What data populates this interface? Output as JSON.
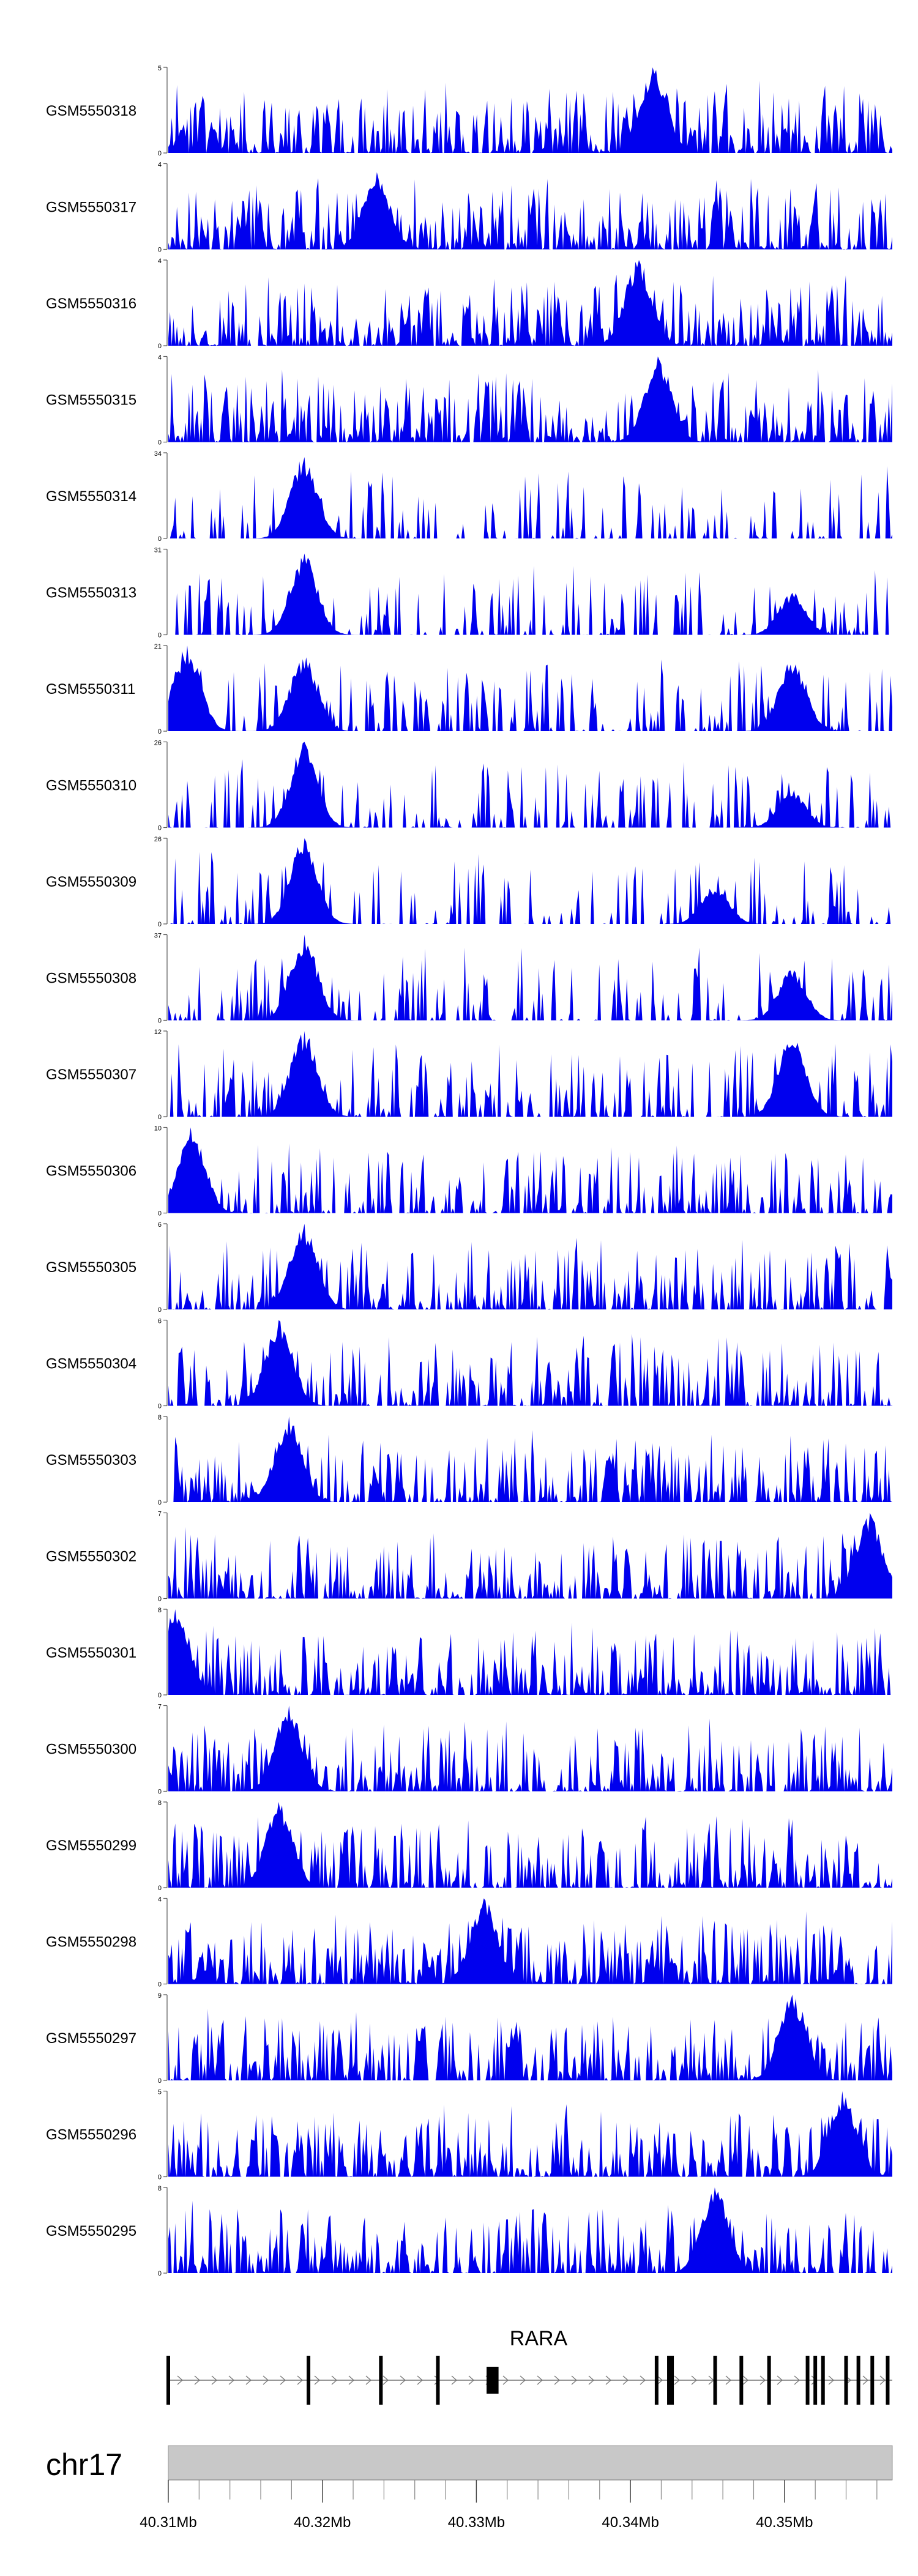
{
  "chart_data": {
    "type": "area",
    "title": "",
    "xlabel": "",
    "ylabel": "",
    "x_range_mb": [
      40.31,
      40.357
    ],
    "fill_color": "#0000ee",
    "tracks": [
      {
        "name": "GSM5550318",
        "ymax": 5,
        "ymin": 0,
        "seed": 318,
        "peaks": [
          [
            40.3415,
            1.0
          ]
        ],
        "dense": 0.85
      },
      {
        "name": "GSM5550317",
        "ymax": 4,
        "ymin": 0,
        "seed": 317,
        "peaks": [
          [
            40.3235,
            0.9
          ]
        ],
        "dense": 0.85
      },
      {
        "name": "GSM5550316",
        "ymax": 4,
        "ymin": 0,
        "seed": 316,
        "peaks": [
          [
            40.3405,
            1.0
          ]
        ],
        "dense": 0.85
      },
      {
        "name": "GSM5550315",
        "ymax": 4,
        "ymin": 0,
        "seed": 315,
        "peaks": [
          [
            40.3418,
            1.0
          ]
        ],
        "dense": 0.85
      },
      {
        "name": "GSM5550314",
        "ymax": 34,
        "ymin": 0,
        "seed": 314,
        "peaks": [
          [
            40.3188,
            0.95
          ]
        ],
        "dense": 0.25
      },
      {
        "name": "GSM5550313",
        "ymax": 31,
        "ymin": 0,
        "seed": 313,
        "peaks": [
          [
            40.3188,
            0.95
          ],
          [
            40.3505,
            0.5
          ]
        ],
        "dense": 0.35
      },
      {
        "name": "GSM5550311",
        "ymax": 21,
        "ymin": 0,
        "seed": 311,
        "peaks": [
          [
            40.3112,
            1.0
          ],
          [
            40.3188,
            0.9
          ],
          [
            40.3505,
            0.85
          ]
        ],
        "dense": 0.4
      },
      {
        "name": "GSM5550310",
        "ymax": 26,
        "ymin": 0,
        "seed": 310,
        "peaks": [
          [
            40.3188,
            1.0
          ],
          [
            40.3505,
            0.45
          ]
        ],
        "dense": 0.35
      },
      {
        "name": "GSM5550309",
        "ymax": 26,
        "ymin": 0,
        "seed": 309,
        "peaks": [
          [
            40.3188,
            1.0
          ],
          [
            40.3455,
            0.45
          ]
        ],
        "dense": 0.3
      },
      {
        "name": "GSM5550308",
        "ymax": 37,
        "ymin": 0,
        "seed": 308,
        "peaks": [
          [
            40.3188,
            1.0
          ],
          [
            40.3505,
            0.6
          ]
        ],
        "dense": 0.3
      },
      {
        "name": "GSM5550307",
        "ymax": 12,
        "ymin": 0,
        "seed": 307,
        "peaks": [
          [
            40.3188,
            1.0
          ],
          [
            40.3505,
            1.0
          ]
        ],
        "dense": 0.5
      },
      {
        "name": "GSM5550306",
        "ymax": 10,
        "ymin": 0,
        "seed": 306,
        "peaks": [
          [
            40.3115,
            1.0
          ]
        ],
        "dense": 0.55
      },
      {
        "name": "GSM5550305",
        "ymax": 6,
        "ymin": 0,
        "seed": 305,
        "peaks": [
          [
            40.3188,
            1.0
          ]
        ],
        "dense": 0.7
      },
      {
        "name": "GSM5550304",
        "ymax": 6,
        "ymin": 0,
        "seed": 304,
        "peaks": [
          [
            40.3172,
            1.0
          ]
        ],
        "dense": 0.65
      },
      {
        "name": "GSM5550303",
        "ymax": 8,
        "ymin": 0,
        "seed": 303,
        "peaks": [
          [
            40.3178,
            1.0
          ]
        ],
        "dense": 0.7
      },
      {
        "name": "GSM5550302",
        "ymax": 7,
        "ymin": 0,
        "seed": 302,
        "peaks": [
          [
            40.3555,
            1.0
          ]
        ],
        "dense": 0.7
      },
      {
        "name": "GSM5550301",
        "ymax": 8,
        "ymin": 0,
        "seed": 301,
        "peaks": [
          [
            40.3105,
            1.0
          ]
        ],
        "dense": 0.75
      },
      {
        "name": "GSM5550300",
        "ymax": 7,
        "ymin": 0,
        "seed": 300,
        "peaks": [
          [
            40.3178,
            1.0
          ]
        ],
        "dense": 0.8
      },
      {
        "name": "GSM5550299",
        "ymax": 8,
        "ymin": 0,
        "seed": 299,
        "peaks": [
          [
            40.3172,
            1.0
          ]
        ],
        "dense": 0.75
      },
      {
        "name": "GSM5550298",
        "ymax": 4,
        "ymin": 0,
        "seed": 298,
        "peaks": [
          [
            40.3305,
            1.0
          ]
        ],
        "dense": 0.9
      },
      {
        "name": "GSM5550297",
        "ymax": 9,
        "ymin": 0,
        "seed": 297,
        "peaks": [
          [
            40.3505,
            1.0
          ]
        ],
        "dense": 0.75
      },
      {
        "name": "GSM5550296",
        "ymax": 5,
        "ymin": 0,
        "seed": 296,
        "peaks": [
          [
            40.3538,
            1.0
          ]
        ],
        "dense": 0.85
      },
      {
        "name": "GSM5550295",
        "ymax": 8,
        "ymin": 0,
        "seed": 295,
        "peaks": [
          [
            40.3455,
            1.0
          ]
        ],
        "dense": 0.75
      }
    ],
    "gene": {
      "name": "RARA",
      "strand": "+",
      "start_mb": 40.31,
      "end_mb": 40.357,
      "exons_mb": [
        40.31,
        40.3191,
        40.3238,
        40.3275,
        40.3309,
        40.3312,
        40.3417,
        40.3425,
        40.3427,
        40.3455,
        40.3472,
        40.349,
        40.3515,
        40.352,
        40.3525,
        40.354,
        40.3548,
        40.3557,
        40.3567
      ]
    },
    "chromosome": {
      "label": "chr17",
      "tick_labels": [
        "40.31Mb",
        "40.32Mb",
        "40.33Mb",
        "40.34Mb",
        "40.35Mb"
      ],
      "tick_values_mb": [
        40.31,
        40.32,
        40.33,
        40.34,
        40.35
      ],
      "minor_step_mb": 0.002
    }
  }
}
